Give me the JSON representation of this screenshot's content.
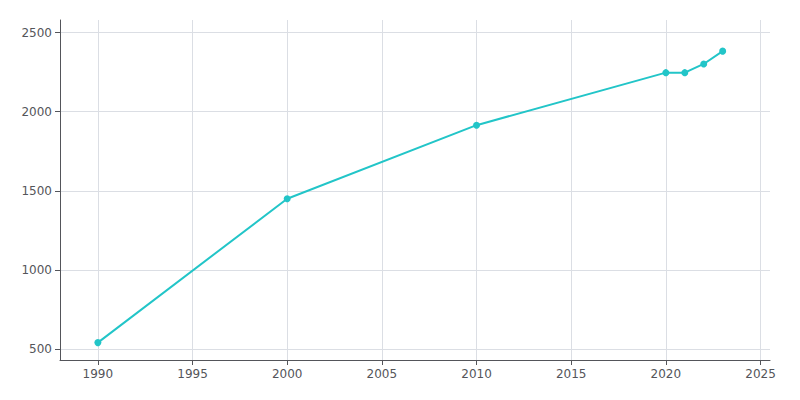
{
  "chart_data": {
    "type": "line",
    "x": [
      1990,
      2000,
      2010,
      2020,
      2021,
      2022,
      2023
    ],
    "values": [
      540,
      1450,
      1915,
      2247,
      2247,
      2302,
      2383
    ],
    "color": "#22C5C8",
    "marker": "circle",
    "xlim": [
      1988,
      2025.5
    ],
    "ylim": [
      430,
      2580
    ],
    "xticks": [
      1990,
      1995,
      2000,
      2005,
      2010,
      2015,
      2020,
      2025
    ],
    "yticks": [
      500,
      1000,
      1500,
      2000,
      2500
    ],
    "grid": true
  }
}
